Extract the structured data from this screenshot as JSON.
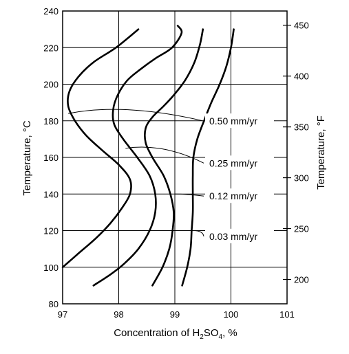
{
  "chart_data": {
    "type": "line",
    "xlabel_prefix": "Concentration of H",
    "xlabel_sub1": "2",
    "xlabel_mid": "SO",
    "xlabel_sub2": "4",
    "xlabel_suffix": ", %",
    "ylabel_left": "Temperature, °C",
    "ylabel_right": "Temperature, °F",
    "xlim": [
      97,
      101
    ],
    "ylim": [
      80,
      240
    ],
    "x_ticks": [
      "97",
      "98",
      "99",
      "100",
      "101"
    ],
    "y_ticks_left": [
      "80",
      "100",
      "120",
      "140",
      "160",
      "180",
      "200",
      "220",
      "240"
    ],
    "y_ticks_right": [
      {
        "label": "200",
        "value_F": 200
      },
      {
        "label": "250",
        "value_F": 250
      },
      {
        "label": "300",
        "value_F": 300
      },
      {
        "label": "350",
        "value_F": 350
      },
      {
        "label": "400",
        "value_F": 400
      },
      {
        "label": "450",
        "value_F": 450
      }
    ],
    "grid": true,
    "series": [
      {
        "name": "0.50 mm/yr",
        "points": [
          [
            97.0,
            100
          ],
          [
            97.3,
            108
          ],
          [
            97.6,
            116
          ],
          [
            97.85,
            124
          ],
          [
            98.05,
            132
          ],
          [
            98.2,
            140
          ],
          [
            98.2,
            148
          ],
          [
            98.0,
            156
          ],
          [
            97.7,
            164
          ],
          [
            97.42,
            172
          ],
          [
            97.22,
            180
          ],
          [
            97.1,
            188
          ],
          [
            97.12,
            196
          ],
          [
            97.28,
            204
          ],
          [
            97.55,
            212
          ],
          [
            97.95,
            220
          ],
          [
            98.35,
            230
          ]
        ],
        "label_at": [
          97.1,
          184
        ],
        "label_curve_ctrl": [
          98.1,
          190
        ]
      },
      {
        "name": "0.25 mm/yr",
        "points": [
          [
            97.55,
            90
          ],
          [
            97.85,
            96
          ],
          [
            98.1,
            102
          ],
          [
            98.35,
            110
          ],
          [
            98.55,
            120
          ],
          [
            98.65,
            130
          ],
          [
            98.65,
            140
          ],
          [
            98.55,
            150
          ],
          [
            98.33,
            160
          ],
          [
            98.08,
            170
          ],
          [
            97.92,
            178
          ],
          [
            97.9,
            186
          ],
          [
            97.98,
            194
          ],
          [
            98.15,
            202
          ],
          [
            98.38,
            208
          ],
          [
            98.65,
            214
          ],
          [
            98.95,
            220
          ],
          [
            99.12,
            228
          ],
          [
            99.05,
            232
          ]
        ],
        "label_at": [
          98.12,
          165
        ],
        "label_curve_ctrl": [
          98.8,
          168
        ]
      },
      {
        "name": "0.12 mm/yr",
        "points": [
          [
            98.6,
            90
          ],
          [
            98.78,
            100
          ],
          [
            98.9,
            110
          ],
          [
            98.96,
            120
          ],
          [
            98.98,
            130
          ],
          [
            98.92,
            140
          ],
          [
            98.8,
            150
          ],
          [
            98.6,
            160
          ],
          [
            98.48,
            168
          ],
          [
            98.48,
            176
          ],
          [
            98.6,
            182
          ],
          [
            98.8,
            188
          ],
          [
            98.98,
            194
          ],
          [
            99.18,
            202
          ],
          [
            99.35,
            212
          ],
          [
            99.45,
            222
          ],
          [
            99.5,
            230
          ]
        ],
        "label_at": [
          99.0,
          140
        ],
        "label_curve_ctrl": [
          99.2,
          140
        ]
      },
      {
        "name": "0.03 mm/yr",
        "points": [
          [
            99.13,
            90
          ],
          [
            99.22,
            100
          ],
          [
            99.28,
            110
          ],
          [
            99.3,
            120
          ],
          [
            99.32,
            130
          ],
          [
            99.32,
            140
          ],
          [
            99.32,
            150
          ],
          [
            99.33,
            160
          ],
          [
            99.4,
            170
          ],
          [
            99.52,
            180
          ],
          [
            99.65,
            190
          ],
          [
            99.8,
            200
          ],
          [
            99.92,
            210
          ],
          [
            100.0,
            220
          ],
          [
            100.05,
            230
          ]
        ],
        "label_at": [
          99.33,
          120
        ],
        "label_curve_ctrl": [
          99.5,
          120
        ]
      }
    ],
    "labels": [
      {
        "text": "0.50 mm/yr",
        "y": 178
      },
      {
        "text": "0.25 mm/yr",
        "y": 155
      },
      {
        "text": "0.12 mm/yr",
        "y": 137
      },
      {
        "text": "0.03 mm/yr",
        "y": 115
      }
    ],
    "colors": {
      "line": "#000000",
      "grid": "#000000",
      "background": "#ffffff"
    }
  }
}
